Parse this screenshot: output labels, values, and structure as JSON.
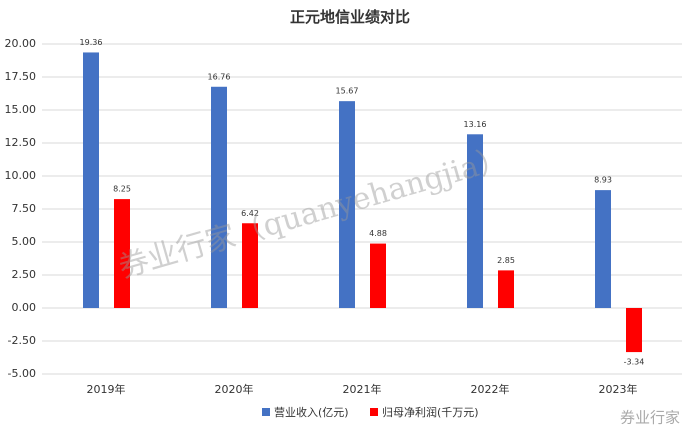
{
  "chart_data": {
    "type": "bar",
    "title": "正元地信业绩对比",
    "categories": [
      "2019年",
      "2020年",
      "2021年",
      "2022年",
      "2023年"
    ],
    "series": [
      {
        "name": "营业收入(亿元)",
        "color": "#4472c4",
        "values": [
          19.36,
          16.76,
          15.67,
          13.16,
          8.93
        ]
      },
      {
        "name": "归母净利润(千万元)",
        "color": "#ff0000",
        "values": [
          8.25,
          6.42,
          4.88,
          2.85,
          -3.34
        ]
      }
    ],
    "ylim": [
      -5,
      20
    ],
    "yticks": [
      {
        "value": -5,
        "label": "-5.00"
      },
      {
        "value": -2.5,
        "label": "-2.50"
      },
      {
        "value": 0,
        "label": "0.00"
      },
      {
        "value": 2.5,
        "label": "2.50"
      },
      {
        "value": 5,
        "label": "5.00"
      },
      {
        "value": 7.5,
        "label": "7.50"
      },
      {
        "value": 10,
        "label": "10.00"
      },
      {
        "value": 12.5,
        "label": "12.50"
      },
      {
        "value": 15,
        "label": "15.00"
      },
      {
        "value": 17.5,
        "label": "17.50"
      },
      {
        "value": 20,
        "label": "20.00"
      }
    ],
    "grid": true,
    "legend": "bottom",
    "annotations": [
      "券业行家（quanyehangjia）",
      "券业行家"
    ]
  }
}
